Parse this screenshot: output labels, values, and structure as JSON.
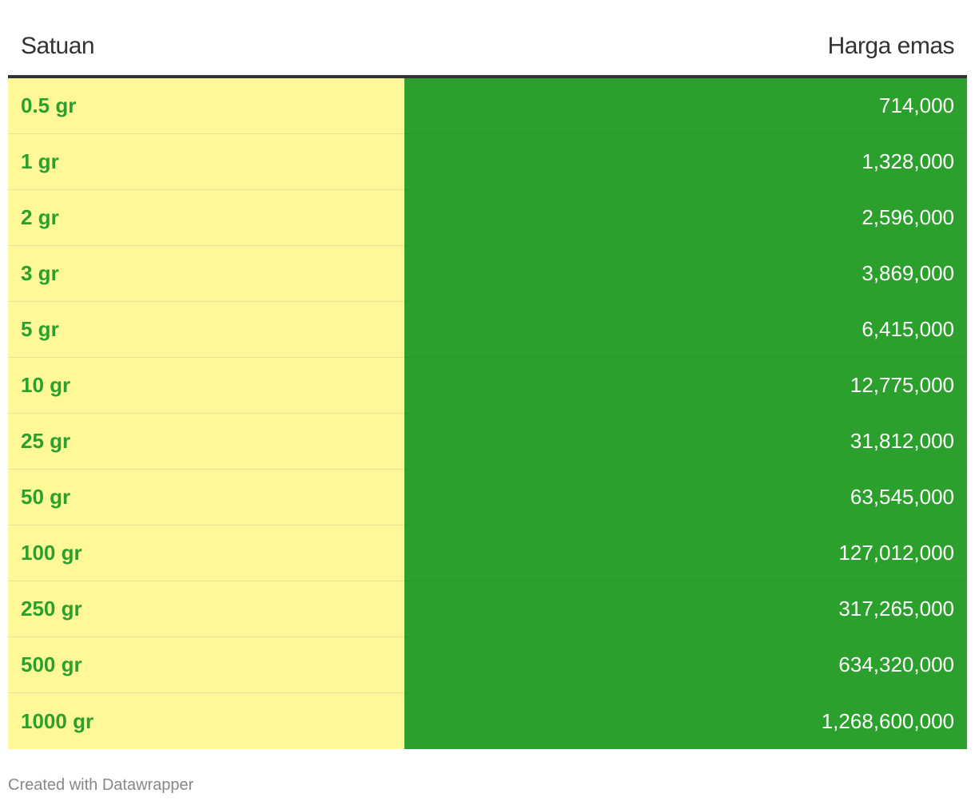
{
  "chart_data": {
    "type": "table",
    "columns": [
      "Satuan",
      "Harga emas"
    ],
    "rows": [
      {
        "unit": "0.5 gr",
        "price": "714,000"
      },
      {
        "unit": "1 gr",
        "price": "1,328,000"
      },
      {
        "unit": "2 gr",
        "price": "2,596,000"
      },
      {
        "unit": "3 gr",
        "price": "3,869,000"
      },
      {
        "unit": "5 gr",
        "price": "6,415,000"
      },
      {
        "unit": "10 gr",
        "price": "12,775,000"
      },
      {
        "unit": "25 gr",
        "price": "31,812,000"
      },
      {
        "unit": "50 gr",
        "price": "63,545,000"
      },
      {
        "unit": "100 gr",
        "price": "127,012,000"
      },
      {
        "unit": "250 gr",
        "price": "317,265,000"
      },
      {
        "unit": "500 gr",
        "price": "634,320,000"
      },
      {
        "unit": "1000 gr",
        "price": "1,268,600,000"
      }
    ]
  },
  "colors": {
    "unit_background": "#fff899",
    "unit_text": "#2ca02c",
    "price_background": "#2ca02c",
    "price_text": "#ffffff"
  },
  "footer": {
    "credit": "Created with Datawrapper"
  }
}
